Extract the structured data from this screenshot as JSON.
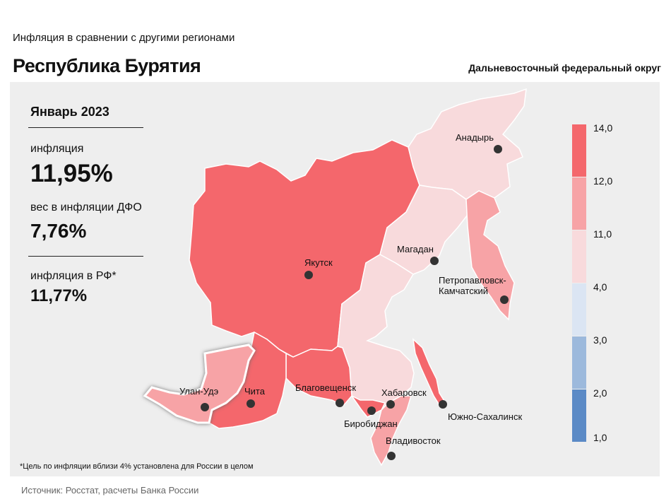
{
  "header": {
    "subtitle": "Инфляция  в сравнении  с другими  регионами",
    "title": "Республика Бурятия",
    "district": "Дальневосточный федеральный округ"
  },
  "stats": {
    "period": "Январь 2023",
    "inflation_label": "инфляция",
    "inflation_value": "11,95%",
    "weight_label": "вес в инфляции  ДФО",
    "weight_value": "7,76%",
    "rf_label": "инфляция  в РФ*",
    "rf_value": "11,77%"
  },
  "legend": {
    "bins": [
      {
        "from": 12.0,
        "to": 14.0,
        "color": "#f4676c"
      },
      {
        "from": 11.0,
        "to": 12.0,
        "color": "#f7a3a6"
      },
      {
        "from": 4.0,
        "to": 11.0,
        "color": "#f8dadc"
      },
      {
        "from": 3.0,
        "to": 4.0,
        "color": "#dbe5f3"
      },
      {
        "from": 2.0,
        "to": 3.0,
        "color": "#9cb9dc"
      },
      {
        "from": 1.0,
        "to": 2.0,
        "color": "#5b8ac6"
      }
    ],
    "tick_labels": [
      "14,0",
      "12,0",
      "11,0",
      "4,0",
      "3,0",
      "2,0",
      "1,0"
    ]
  },
  "regions": {
    "yakutia": {
      "color": "#f4676c"
    },
    "chukotka": {
      "color": "#f8dadc"
    },
    "magadan": {
      "color": "#f8dadc"
    },
    "kamchatka": {
      "color": "#f7a3a6"
    },
    "khabarovsk": {
      "color": "#f8dadc"
    },
    "sakhalin": {
      "color": "#f4676c"
    },
    "primorye": {
      "color": "#f7a3a6"
    },
    "jewish_ao": {
      "color": "#f4676c"
    },
    "amur": {
      "color": "#f4676c"
    },
    "zabaikalye": {
      "color": "#f4676c"
    },
    "buryatia": {
      "color": "#f7a3a6"
    }
  },
  "cities": [
    "Анадырь",
    "Магадан",
    "Якутск",
    "Петропавловск-",
    "Камчатский",
    "Улан-Удэ",
    "Чита",
    "Благовещенск",
    "Хабаровск",
    "Южно-Сахалинск",
    "Биробиджан",
    "Владивосток"
  ],
  "footnote": "*Цель по инфляции вблизи 4% установлена для России в целом",
  "source": "Источник: Росстат, расчеты Банка России"
}
